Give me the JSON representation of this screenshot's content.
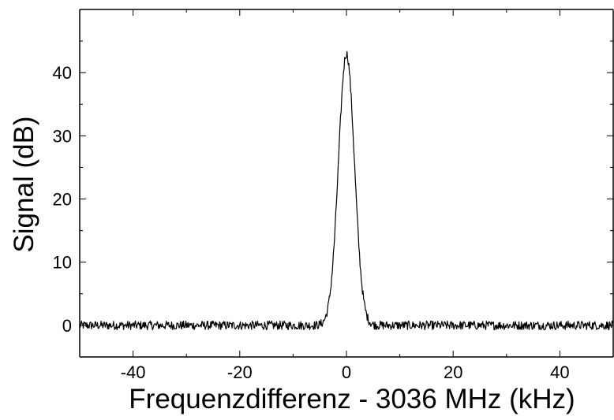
{
  "chart_data": {
    "type": "line",
    "title": "",
    "xlabel": "Frequenzdifferenz - 3036 MHz  (kHz)",
    "ylabel": "Signal (dB)",
    "xlim": [
      -50,
      50
    ],
    "ylim": [
      -5,
      50
    ],
    "x_ticks": [
      -40,
      -20,
      0,
      20,
      40
    ],
    "x_tick_labels": [
      "-40",
      "-20",
      "0",
      "20",
      "40"
    ],
    "y_ticks": [
      0,
      10,
      20,
      30,
      40
    ],
    "y_tick_labels": [
      "0",
      "10",
      "20",
      "30",
      "40"
    ],
    "x_minor_step": 10,
    "y_minor_step": 5,
    "grid": false,
    "series": [
      {
        "color": "#000000",
        "peak_center": 0,
        "peak_height": 43,
        "peak_fwhm": 3.5,
        "baseline": 0,
        "noise_amplitude": 0.7,
        "x_range": [
          -50,
          50
        ],
        "points": [
          [
            -50,
            0.0
          ],
          [
            -45,
            0.2
          ],
          [
            -40,
            0.0
          ],
          [
            -35,
            0.1
          ],
          [
            -30,
            -0.3
          ],
          [
            -25,
            0.2
          ],
          [
            -20,
            0.3
          ],
          [
            -15,
            0.0
          ],
          [
            -10,
            -0.5
          ],
          [
            -5,
            0.3
          ],
          [
            -4,
            1.0
          ],
          [
            -3,
            3.5
          ],
          [
            -2,
            14
          ],
          [
            -1,
            33
          ],
          [
            0,
            43
          ],
          [
            1,
            33
          ],
          [
            2,
            14
          ],
          [
            3,
            3.5
          ],
          [
            4,
            1.0
          ],
          [
            5,
            0.3
          ],
          [
            10,
            0.0
          ],
          [
            15,
            0.1
          ],
          [
            20,
            0.3
          ],
          [
            25,
            0.0
          ],
          [
            30,
            0.1
          ],
          [
            35,
            0.0
          ],
          [
            40,
            0.1
          ],
          [
            45,
            0.0
          ],
          [
            50,
            0.2
          ]
        ]
      }
    ]
  }
}
